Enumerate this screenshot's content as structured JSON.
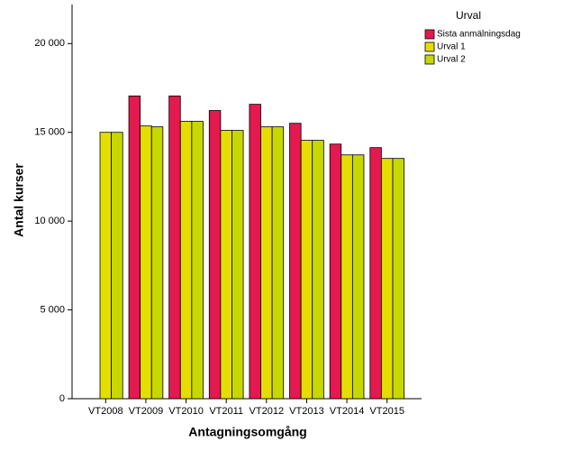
{
  "chart_data": {
    "type": "bar",
    "x_label": "Antagningsomgång",
    "y_label": "Antal kurser",
    "legend_title": "Urval",
    "legend_position": "upper right",
    "categories": [
      "VT2008",
      "VT2009",
      "VT2010",
      "VT2011",
      "VT2012",
      "VT2013",
      "VT2014",
      "VT2015"
    ],
    "series": [
      {
        "name": "Sista anmälningsdag",
        "color": "#e3194f",
        "values": [
          null,
          17050,
          17050,
          16230,
          16580,
          15510,
          14340,
          14140
        ]
      },
      {
        "name": "Urval 1",
        "color": "#e5dd00",
        "values": [
          15000,
          15360,
          15620,
          15110,
          15310,
          14550,
          13730,
          13530
        ]
      },
      {
        "name": "Urval 2",
        "color": "#c6d800",
        "values": [
          15000,
          15310,
          15620,
          15110,
          15310,
          14550,
          13730,
          13530
        ]
      }
    ],
    "ylim": [
      0,
      22200
    ],
    "yticks": [
      0,
      {
        "value": 5000,
        "label": "5 000"
      },
      {
        "value": 10000,
        "label": "10 000"
      },
      {
        "value": 15000,
        "label": "15 000"
      },
      {
        "value": 20000,
        "label": "20 000"
      }
    ]
  }
}
